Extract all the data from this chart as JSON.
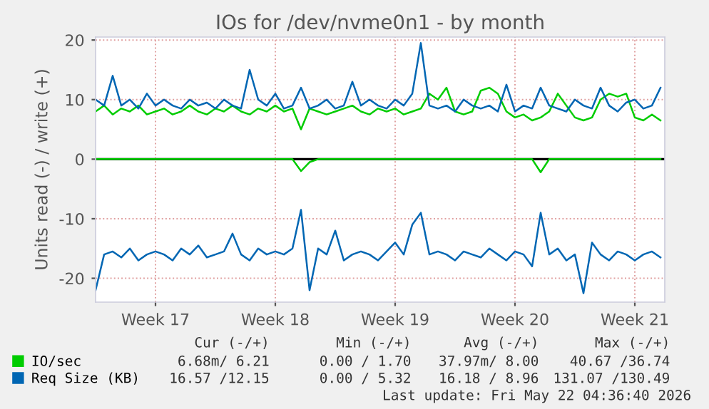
{
  "chart_data": {
    "type": "line",
    "title": "IOs for /dev/nvme0n1 - by month",
    "ylabel": "Units read (-) / write (+)",
    "categories": [
      null,
      null,
      null,
      null,
      null,
      null,
      null,
      "Week 17",
      null,
      null,
      null,
      null,
      null,
      null,
      null,
      null,
      null,
      null,
      null,
      null,
      null,
      "Week 18",
      null,
      null,
      null,
      null,
      null,
      null,
      null,
      null,
      null,
      null,
      null,
      null,
      null,
      "Week 19",
      null,
      null,
      null,
      null,
      null,
      null,
      null,
      null,
      null,
      null,
      null,
      null,
      null,
      "Week 20",
      null,
      null,
      null,
      null,
      null,
      null,
      null,
      null,
      null,
      null,
      null,
      null,
      null,
      "Week 21",
      null,
      null,
      null
    ],
    "series": [
      {
        "name": "IO/sec",
        "color": "#00cc00",
        "values": [
          8,
          9,
          7.5,
          8.5,
          8,
          9,
          7.5,
          8,
          8.5,
          7.5,
          8,
          9,
          8,
          7.5,
          8.5,
          8,
          9,
          8,
          7.5,
          8.5,
          8,
          9,
          8,
          8.5,
          5,
          8.5,
          8,
          7.5,
          8,
          8.5,
          9,
          8,
          7.5,
          8.5,
          8,
          8.5,
          7.5,
          8,
          8.5,
          11,
          10,
          12,
          8,
          7.5,
          8,
          11.5,
          12,
          11,
          8,
          7,
          7.5,
          6.5,
          7,
          8,
          11,
          9,
          7,
          6.5,
          7,
          10,
          11,
          10.5,
          11,
          7,
          6.5,
          7.5,
          6.5
        ]
      },
      {
        "color": "#00cc00",
        "values": [
          0,
          0,
          0,
          0,
          0,
          0,
          0,
          0,
          0,
          0,
          0,
          0,
          0,
          0,
          0,
          0,
          0,
          0,
          0,
          0,
          0,
          0,
          0,
          0,
          -2,
          -0.5,
          0,
          0,
          0,
          0,
          0,
          0,
          0,
          0,
          0,
          0,
          0,
          0,
          0,
          0,
          0,
          0,
          0,
          0,
          0,
          0,
          0,
          0,
          0,
          0,
          0,
          0,
          -2.2,
          0,
          0,
          0,
          0,
          0,
          0,
          0,
          0,
          0,
          0,
          0,
          0,
          0,
          0
        ]
      },
      {
        "name": "Req Size (KB)",
        "color": "#0066b3",
        "values": [
          10,
          9,
          14,
          9,
          10,
          8.5,
          11,
          9,
          10,
          9,
          8.5,
          10,
          9,
          9.5,
          8.5,
          10,
          9,
          8.5,
          15,
          10,
          9,
          11,
          8.5,
          9,
          12,
          8.5,
          9,
          10,
          8.5,
          9,
          13,
          9,
          10,
          9,
          8.5,
          10,
          9,
          11,
          19.5,
          9,
          8.5,
          9,
          8,
          10,
          9,
          8.5,
          9,
          8,
          12.5,
          8,
          9,
          8.5,
          12,
          9,
          8.5,
          8,
          10,
          9,
          8.5,
          12,
          9,
          8,
          9.5,
          10,
          8.5,
          9,
          12
        ]
      },
      {
        "color": "#0066b3",
        "values": [
          -22,
          -16,
          -15.5,
          -16.5,
          -15,
          -17,
          -16,
          -15.5,
          -16,
          -17,
          -15,
          -16,
          -14.5,
          -16.5,
          -16,
          -15.5,
          -12.5,
          -16,
          -17,
          -15,
          -16,
          -15.5,
          -16,
          -15,
          -8.5,
          -22,
          -15,
          -16,
          -12,
          -17,
          -16,
          -15.5,
          -16,
          -17,
          -15.5,
          -14,
          -16,
          -11,
          -9,
          -16,
          -15.5,
          -16,
          -17,
          -15.5,
          -16,
          -16.5,
          -15,
          -16,
          -17,
          -15.5,
          -16,
          -18,
          -9,
          -16,
          -15,
          -17,
          -16,
          -22.5,
          -14,
          -16,
          -17,
          -15.5,
          -16,
          -17,
          -16,
          -15.5,
          -16.5
        ]
      }
    ],
    "ylim": [
      -24,
      20.5
    ],
    "yticks": [
      -20,
      -10,
      0,
      10,
      20
    ],
    "ref_lines": [
      {
        "axis": "y",
        "value": 0,
        "color": "#000000"
      }
    ],
    "grid": true,
    "legend": "bottom",
    "annotations": [
      "Cur (-/+)",
      "Min (-/+)",
      "Avg (-/+)",
      "Max (-/+)",
      "6.68m/ 6.21",
      "0.00 / 1.70",
      "37.97m/ 8.00",
      "40.67 /36.74",
      "16.57 /12.15",
      "0.00 / 5.32",
      "16.18 / 8.96",
      "131.07 /130.49",
      "Last update: Fri May 22 04:36:40 2026"
    ]
  }
}
